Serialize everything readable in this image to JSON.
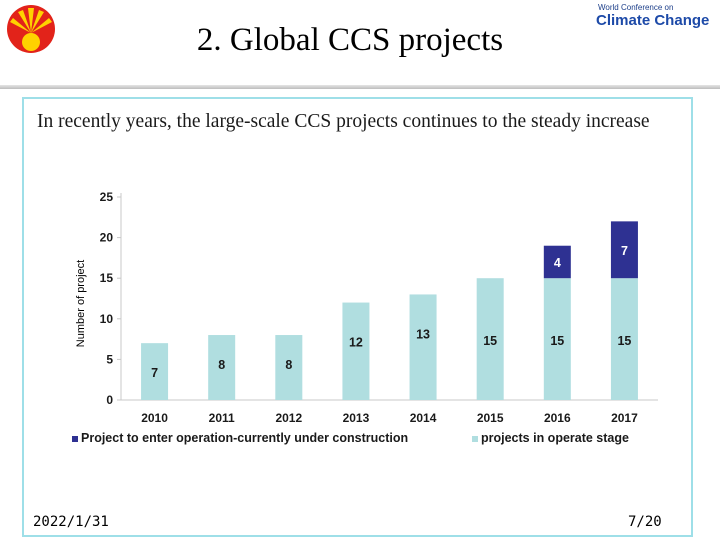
{
  "header": {
    "title": "2. Global CCS projects",
    "brand_small": "World Conference on",
    "brand_big": "Climate Change"
  },
  "subtitle": "In recently years, the large-scale CCS projects continues to the steady increase",
  "footer": {
    "date": "2022/1/31",
    "page": "7/20"
  },
  "colors": {
    "operate": "#b0dee0",
    "construction": "#2e3192",
    "logo_red": "#e2231a",
    "logo_yellow": "#ffd200"
  },
  "chart_data": {
    "type": "bar",
    "stacked": true,
    "categories": [
      "2010",
      "2011",
      "2012",
      "2013",
      "2014",
      "2015",
      "2016",
      "2017"
    ],
    "series": [
      {
        "name": "projects in operate stage",
        "values": [
          7,
          8,
          8,
          12,
          13,
          15,
          15,
          15
        ],
        "color": "#b0dee0"
      },
      {
        "name": "Project to enter operation-currently under construction",
        "values": [
          0,
          0,
          0,
          0,
          0,
          0,
          4,
          7
        ],
        "color": "#2e3192"
      }
    ],
    "ylabel": "Number   of project",
    "yticks": [
      0,
      5,
      10,
      15,
      20,
      25
    ],
    "ylim": [
      0,
      25
    ],
    "legend_order": [
      1,
      0
    ],
    "legend_position": "bottom"
  }
}
